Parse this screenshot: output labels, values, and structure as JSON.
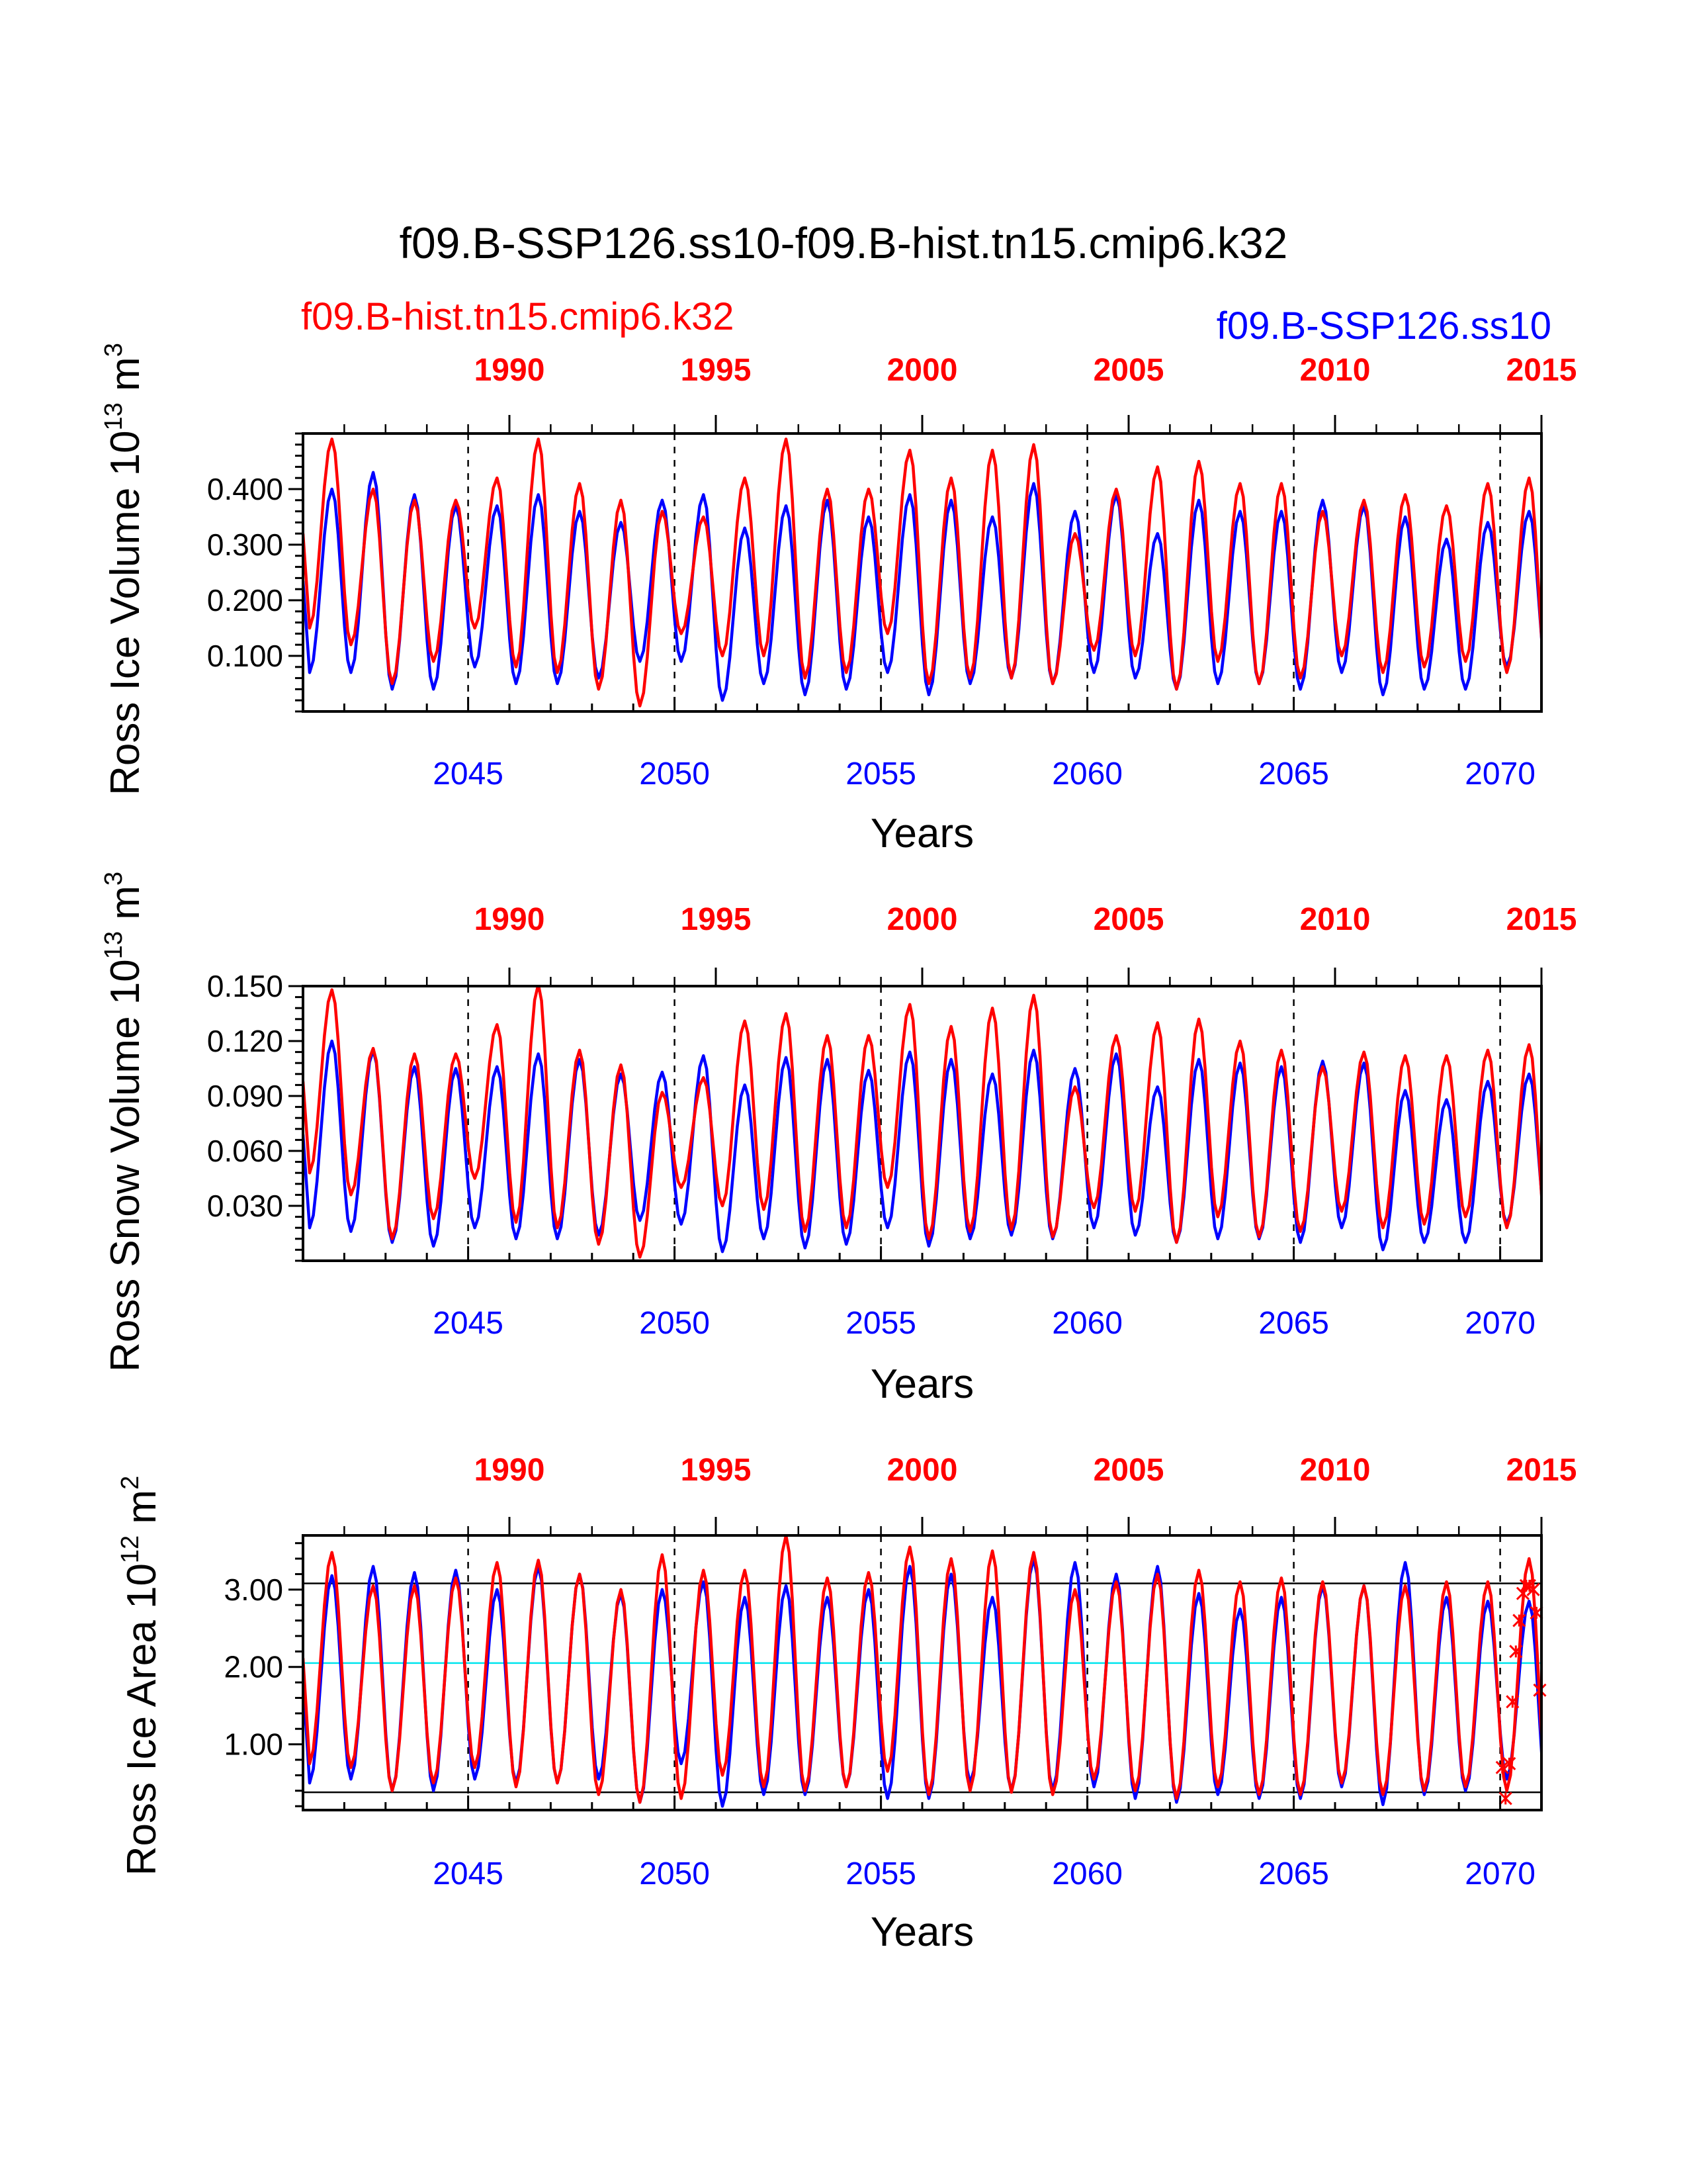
{
  "title": "f09.B-SSP126.ss10-f09.B-hist.tn15.cmip6.k32",
  "legend": {
    "red_label": "f09.B-hist.tn15.cmip6.k32",
    "blue_label": "f09.B-SSP126.ss10"
  },
  "colors": {
    "red": "#ff0000",
    "blue": "#0000ff",
    "cyan": "#00e5ee",
    "axis": "#000000"
  },
  "chart_data": [
    {
      "type": "line",
      "ylabel_main": "Ross Ice Volume 10",
      "ylabel_sup": "13",
      "ylabel_unit": " m",
      "ylabel_unit_sup": "3",
      "xlabel": "Years",
      "xlim": [
        2041,
        2071
      ],
      "ylim": [
        0.0,
        0.5
      ],
      "yticks": [
        "0.100",
        "0.200",
        "0.300",
        "0.400"
      ],
      "yticks_values": [
        0.1,
        0.2,
        0.3,
        0.4
      ],
      "xticks_bottom": [
        "2045",
        "2050",
        "2055",
        "2060",
        "2065",
        "2070"
      ],
      "xticks_top": [
        "1990",
        "1995",
        "2000",
        "2005",
        "2010",
        "2015"
      ],
      "series": [
        {
          "name": "f09.B-hist.tn15.cmip6.k32",
          "color": "red",
          "peaks": [
            0.49,
            0.4,
            0.38,
            0.38,
            0.42,
            0.49,
            0.41,
            0.38,
            0.36,
            0.35,
            0.42,
            0.49,
            0.4,
            0.4,
            0.47,
            0.42,
            0.47,
            0.48,
            0.32,
            0.4,
            0.44,
            0.45,
            0.41,
            0.41,
            0.36,
            0.38,
            0.39,
            0.37,
            0.41,
            0.42,
            0.36,
            0.34
          ],
          "troughs": [
            0.15,
            0.12,
            0.05,
            0.09,
            0.15,
            0.08,
            0.07,
            0.04,
            0.01,
            0.14,
            0.1,
            0.1,
            0.06,
            0.07,
            0.14,
            0.05,
            0.06,
            0.06,
            0.05,
            0.11,
            0.1,
            0.04,
            0.09,
            0.05,
            0.06,
            0.1,
            0.07,
            0.08,
            0.09,
            0.07,
            0.03,
            0.03
          ]
        },
        {
          "name": "f09.B-SSP126.ss10",
          "color": "blue",
          "peaks": [
            0.4,
            0.43,
            0.39,
            0.37,
            0.37,
            0.39,
            0.36,
            0.34,
            0.38,
            0.39,
            0.33,
            0.37,
            0.38,
            0.35,
            0.39,
            0.38,
            0.35,
            0.41,
            0.36,
            0.39,
            0.32,
            0.38,
            0.36,
            0.36,
            0.38,
            0.37,
            0.35,
            0.31,
            0.34,
            0.36,
            0.36,
            0.38
          ],
          "troughs": [
            0.07,
            0.07,
            0.04,
            0.04,
            0.08,
            0.05,
            0.05,
            0.06,
            0.09,
            0.09,
            0.02,
            0.05,
            0.03,
            0.04,
            0.07,
            0.03,
            0.05,
            0.06,
            0.05,
            0.07,
            0.06,
            0.04,
            0.05,
            0.05,
            0.04,
            0.07,
            0.03,
            0.04,
            0.04,
            0.08,
            0.05,
            0.05
          ]
        }
      ]
    },
    {
      "type": "line",
      "ylabel_main": "Ross Snow Volume 10",
      "ylabel_sup": "13",
      "ylabel_unit": " m",
      "ylabel_unit_sup": "3",
      "xlabel": "Years",
      "xlim": [
        2041,
        2071
      ],
      "ylim": [
        0.0,
        0.15
      ],
      "yticks": [
        "0.030",
        "0.060",
        "0.090",
        "0.120",
        "0.150"
      ],
      "yticks_values": [
        0.03,
        0.06,
        0.09,
        0.12,
        0.15
      ],
      "xticks_bottom": [
        "2045",
        "2050",
        "2055",
        "2060",
        "2065",
        "2070"
      ],
      "xticks_top": [
        "1990",
        "1995",
        "2000",
        "2005",
        "2010",
        "2015"
      ],
      "series": [
        {
          "name": "f09.B-hist.tn15.cmip6.k32",
          "color": "red",
          "peaks": [
            0.148,
            0.116,
            0.113,
            0.113,
            0.129,
            0.151,
            0.115,
            0.107,
            0.092,
            0.1,
            0.131,
            0.135,
            0.123,
            0.123,
            0.14,
            0.128,
            0.138,
            0.145,
            0.095,
            0.123,
            0.13,
            0.132,
            0.12,
            0.115,
            0.106,
            0.114,
            0.112,
            0.112,
            0.115,
            0.118,
            0.106,
            0.1
          ],
          "troughs": [
            0.048,
            0.036,
            0.012,
            0.023,
            0.045,
            0.021,
            0.018,
            0.009,
            0.002,
            0.04,
            0.03,
            0.028,
            0.016,
            0.018,
            0.04,
            0.012,
            0.016,
            0.017,
            0.013,
            0.029,
            0.027,
            0.01,
            0.024,
            0.013,
            0.016,
            0.027,
            0.018,
            0.02,
            0.024,
            0.018,
            0.006,
            0.006
          ]
        },
        {
          "name": "f09.B-SSP126.ss10",
          "color": "blue",
          "peaks": [
            0.12,
            0.115,
            0.106,
            0.105,
            0.106,
            0.113,
            0.11,
            0.102,
            0.103,
            0.112,
            0.096,
            0.111,
            0.11,
            0.104,
            0.114,
            0.11,
            0.102,
            0.115,
            0.105,
            0.113,
            0.095,
            0.11,
            0.108,
            0.106,
            0.109,
            0.108,
            0.093,
            0.088,
            0.098,
            0.102,
            0.11,
            0.108
          ],
          "troughs": [
            0.018,
            0.016,
            0.01,
            0.008,
            0.018,
            0.012,
            0.012,
            0.014,
            0.022,
            0.02,
            0.005,
            0.012,
            0.007,
            0.009,
            0.018,
            0.008,
            0.012,
            0.014,
            0.012,
            0.018,
            0.014,
            0.01,
            0.012,
            0.012,
            0.01,
            0.018,
            0.006,
            0.01,
            0.01,
            0.02,
            0.013,
            0.013
          ]
        }
      ]
    },
    {
      "type": "line",
      "ylabel_main": "Ross Ice Area 10",
      "ylabel_sup": "12",
      "ylabel_unit": " m",
      "ylabel_unit_sup": "2",
      "xlabel": "Years",
      "xlim": [
        2041,
        2071
      ],
      "ylim": [
        0.15,
        3.7
      ],
      "yticks": [
        "1.00",
        "2.00",
        "3.00"
      ],
      "yticks_values": [
        1.0,
        2.0,
        3.0
      ],
      "xticks_bottom": [
        "2045",
        "2050",
        "2055",
        "2060",
        "2065",
        "2070"
      ],
      "xticks_top": [
        "1990",
        "1995",
        "2000",
        "2005",
        "2010",
        "2015"
      ],
      "hlines": [
        {
          "value": 3.08,
          "color": "axis"
        },
        {
          "value": 2.05,
          "color": "cyan"
        },
        {
          "value": 0.38,
          "color": "axis"
        }
      ],
      "markers": {
        "color": "red",
        "x": [
          2070.05,
          2070.13,
          2070.22,
          2070.3,
          2070.38,
          2070.46,
          2070.55,
          2070.63,
          2070.71,
          2070.8,
          2070.88,
          2070.96
        ],
        "y": [
          0.7,
          0.3,
          0.75,
          1.55,
          2.2,
          2.6,
          2.95,
          3.05,
          3.05,
          3.0,
          2.7,
          1.7
        ]
      },
      "series": [
        {
          "name": "f09.B-hist.tn15.cmip6.k32",
          "color": "red",
          "peaks": [
            3.48,
            3.05,
            3.05,
            3.15,
            3.35,
            3.38,
            3.2,
            3.0,
            3.45,
            3.25,
            3.25,
            3.7,
            3.15,
            3.22,
            3.55,
            3.4,
            3.5,
            3.48,
            3.0,
            3.1,
            3.2,
            3.25,
            3.1,
            3.15,
            3.1,
            3.05,
            3.05,
            3.1,
            3.1,
            3.4,
            3.1,
            3.0
          ],
          "troughs": [
            0.75,
            0.7,
            0.4,
            0.5,
            0.7,
            0.45,
            0.5,
            0.35,
            0.25,
            0.3,
            0.6,
            0.45,
            0.4,
            0.45,
            0.65,
            0.35,
            0.4,
            0.38,
            0.35,
            0.55,
            0.4,
            0.3,
            0.45,
            0.35,
            0.35,
            0.5,
            0.35,
            0.4,
            0.45,
            0.4,
            0.3,
            0.3
          ]
        },
        {
          "name": "f09.B-SSP126.ss10",
          "color": "blue",
          "peaks": [
            3.18,
            3.3,
            3.22,
            3.25,
            3.0,
            3.3,
            3.2,
            2.95,
            3.0,
            3.1,
            2.9,
            3.05,
            2.9,
            3.0,
            3.3,
            3.2,
            2.9,
            3.4,
            3.35,
            3.2,
            3.3,
            2.95,
            2.75,
            2.9,
            3.05,
            3.05,
            3.35,
            2.9,
            2.85,
            2.85,
            3.05,
            2.95
          ],
          "troughs": [
            0.5,
            0.55,
            0.4,
            0.4,
            0.55,
            0.5,
            0.5,
            0.55,
            0.25,
            0.75,
            0.2,
            0.35,
            0.35,
            0.45,
            0.3,
            0.3,
            0.5,
            0.4,
            0.4,
            0.45,
            0.3,
            0.25,
            0.35,
            0.3,
            0.3,
            0.45,
            0.22,
            0.35,
            0.4,
            0.55,
            0.2,
            0.3
          ]
        }
      ]
    }
  ]
}
